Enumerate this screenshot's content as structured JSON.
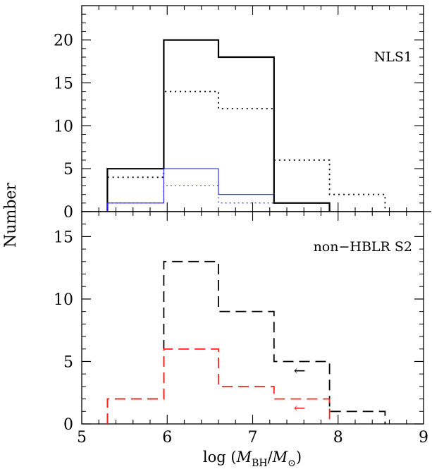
{
  "chart_data": [
    {
      "type": "histogram",
      "panel": "top",
      "label": "NLS1",
      "xlim": [
        5,
        9
      ],
      "ylim": [
        0,
        24
      ],
      "ytick_labels": [
        "0",
        "5",
        "10",
        "15",
        "20"
      ],
      "yticks": [
        0,
        5,
        10,
        15,
        20
      ],
      "series": [
        {
          "style": "solid-thick",
          "color": "#000000",
          "bin_edges": [
            5.3,
            5.96,
            6.6,
            7.25,
            7.9
          ],
          "counts": [
            5,
            20,
            18,
            1
          ]
        },
        {
          "style": "dotted",
          "color": "#000000",
          "bin_edges": [
            5.3,
            5.96,
            6.6,
            7.25,
            7.9,
            8.55
          ],
          "counts": [
            4,
            14,
            12,
            6,
            2
          ]
        },
        {
          "style": "solid-thin",
          "color": "#1a1aff",
          "bin_edges": [
            5.3,
            5.96,
            6.6,
            7.25
          ],
          "counts": [
            1,
            5,
            2,
            2
          ]
        },
        {
          "style": "dotted-thin",
          "color": "#1a1aff",
          "bin_edges": [
            5.3,
            5.96,
            6.6,
            7.25
          ],
          "counts": [
            1,
            3,
            1,
            1
          ]
        }
      ]
    },
    {
      "type": "histogram",
      "panel": "bottom",
      "label": "non−HBLR S2",
      "xlim": [
        5,
        9
      ],
      "ylim": [
        0,
        17
      ],
      "ytick_labels": [
        "0",
        "5",
        "10",
        "15"
      ],
      "yticks": [
        0,
        5,
        10,
        15
      ],
      "series": [
        {
          "style": "dashed",
          "color": "#000000",
          "bin_edges": [
            5.3,
            5.96,
            6.6,
            7.25,
            7.9,
            8.55
          ],
          "counts": [
            2,
            13,
            9,
            5,
            1
          ]
        },
        {
          "style": "dashed",
          "color": "#ff2020",
          "bin_edges": [
            5.3,
            5.96,
            6.6,
            7.25,
            7.9
          ],
          "counts": [
            2,
            6,
            3,
            2
          ]
        }
      ],
      "arrows": [
        {
          "x": 7.55,
          "y": 3.9,
          "color": "#000000",
          "glyph": "←"
        },
        {
          "x": 7.55,
          "y": 0.9,
          "color": "#ff2020",
          "glyph": "←"
        }
      ]
    }
  ],
  "axes": {
    "ylabel": "Number",
    "xtick_labels": [
      "5",
      "6",
      "7",
      "8",
      "9"
    ],
    "xticks": [
      5,
      6,
      7,
      8,
      9
    ],
    "xlabel_prefix": "log (",
    "xlabel_M": "M",
    "xlabel_sub_BH": "BH",
    "xlabel_slash": "/",
    "xlabel_sub_sun": "⊙",
    "xlabel_suffix": ")"
  }
}
